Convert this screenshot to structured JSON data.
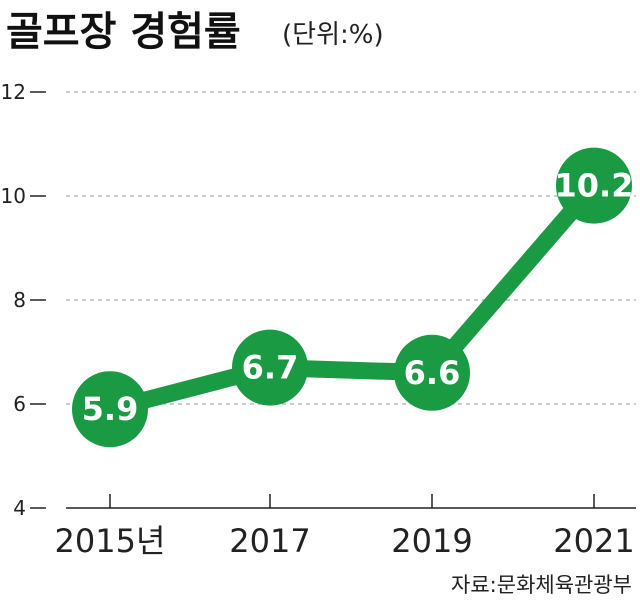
{
  "chart_data": {
    "type": "line",
    "title": "골프장 경험률",
    "unit_label": "(단위:%)",
    "x": [
      "2015년",
      "2017",
      "2019",
      "2021"
    ],
    "series": [
      {
        "values": [
          5.9,
          6.7,
          6.6,
          10.2
        ],
        "labels": [
          "5.9",
          "6.7",
          "6.6",
          "10.2"
        ]
      }
    ],
    "y_ticks": [
      "12",
      "10",
      "8",
      "6",
      "4"
    ],
    "ylim": [
      4,
      12
    ],
    "grid": true,
    "source": "자료:문화체육관광부",
    "colors": {
      "line": "#1a9a43",
      "marker": "#1a9a43",
      "label_text": "#ffffff"
    }
  }
}
